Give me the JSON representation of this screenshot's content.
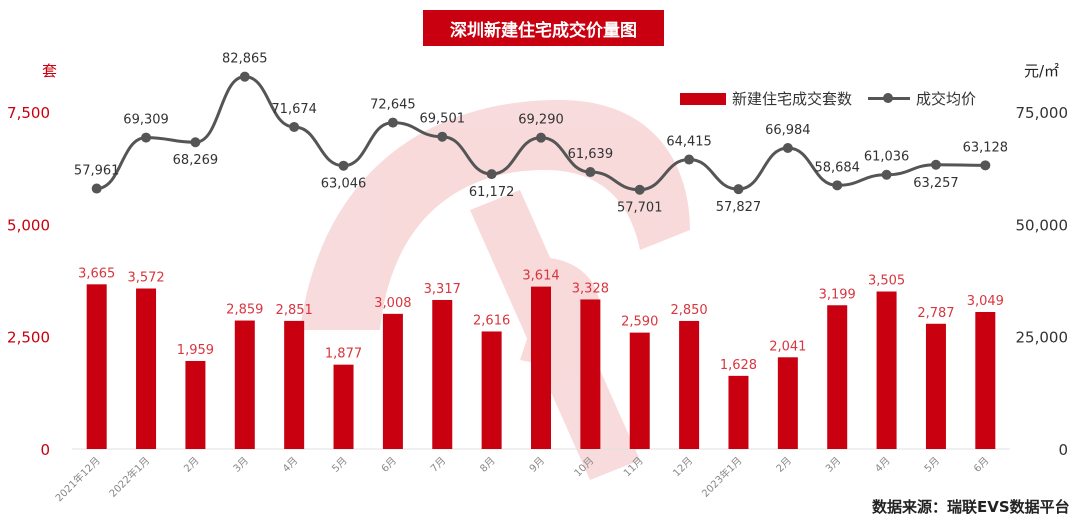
{
  "title": "深圳新建住宅成交价量图",
  "units": {
    "left": "套",
    "right": "元/㎡"
  },
  "source": "数据来源：瑞联EVS数据平台",
  "colors": {
    "bar": "#c8000f",
    "bar_label": "#d9363e",
    "line": "#555555",
    "watermark": "#d9363e"
  },
  "chart_data": {
    "type": "bar",
    "categories": [
      "2021年12月",
      "2022年1月",
      "2月",
      "3月",
      "4月",
      "5月",
      "6月",
      "7月",
      "8月",
      "9月",
      "10月",
      "11月",
      "12月",
      "2023年1月",
      "2月",
      "3月",
      "4月",
      "5月",
      "6月"
    ],
    "series": [
      {
        "name": "新建住宅成交套数",
        "type": "bar",
        "axis": "left",
        "values": [
          3665,
          3572,
          1959,
          2859,
          2851,
          1877,
          3008,
          3317,
          2616,
          3614,
          3328,
          2590,
          2850,
          1628,
          2041,
          3199,
          3505,
          2787,
          3049
        ]
      },
      {
        "name": "成交均价",
        "type": "line",
        "axis": "right",
        "values": [
          57961,
          69309,
          68269,
          82865,
          71674,
          63046,
          72645,
          69501,
          61172,
          69290,
          61639,
          57701,
          64415,
          57827,
          66984,
          58684,
          61036,
          63257,
          63128
        ]
      }
    ],
    "y_left": {
      "range": [
        0,
        7500
      ],
      "ticks": [
        0,
        2500,
        5000,
        7500
      ]
    },
    "y_right": {
      "range": [
        0,
        75000
      ],
      "ticks": [
        0,
        25000,
        50000,
        75000
      ]
    },
    "legend": "top-right",
    "grid": false
  }
}
